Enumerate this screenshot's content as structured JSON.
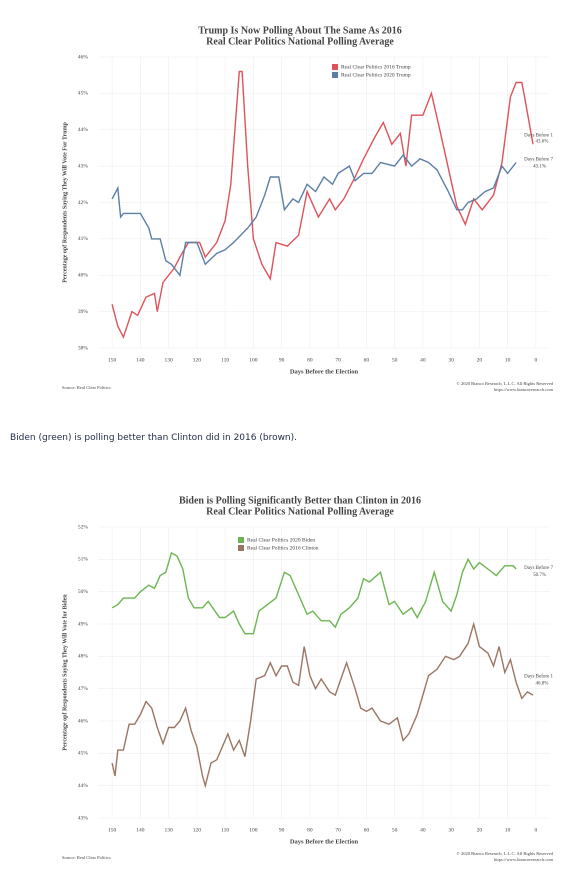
{
  "caption": "Biden (green) is polling better than Clinton did in 2016 (brown).",
  "chart_data": [
    {
      "type": "line",
      "title": "Trump Is Now Polling About The Same As 2016",
      "subtitle": "Real Clear Politics National Polling Average",
      "x_label": "Days Before the Election",
      "y_label": "Percentage opf Respondents Saying They Will Vote For Trump",
      "source": "Source: Real Clear Politics",
      "copyright": "© 2020 Bianco Research, L.L.C. All Rights Reserved",
      "url": "https://www.biancoresearch.com",
      "xlim": [
        155,
        -5
      ],
      "xticks": [
        150,
        140,
        130,
        120,
        110,
        100,
        90,
        80,
        70,
        60,
        50,
        40,
        30,
        20,
        10,
        0
      ],
      "ylim": [
        38,
        46
      ],
      "yticks": [
        {
          "value": 38,
          "label": "38%"
        },
        {
          "value": 39,
          "label": "39%"
        },
        {
          "value": 40,
          "label": "40%"
        },
        {
          "value": 41,
          "label": "41%"
        },
        {
          "value": 42,
          "label": "42%"
        },
        {
          "value": 43,
          "label": "43%"
        },
        {
          "value": 44,
          "label": "44%"
        },
        {
          "value": 45,
          "label": "45%"
        },
        {
          "value": 46,
          "label": "46%"
        }
      ],
      "grid": true,
      "legend": "top",
      "series": [
        {
          "name": "Real Clear Politics 2016 Trump",
          "color": "#e0525a",
          "x": [
            150,
            148,
            146,
            143,
            141,
            138,
            135,
            134,
            132,
            128,
            126,
            123,
            119,
            117,
            113,
            110,
            108,
            105,
            104,
            102,
            100,
            97,
            94,
            92,
            88,
            84,
            81,
            77,
            73,
            71,
            68,
            64,
            61,
            57,
            54,
            51,
            48,
            46,
            44,
            40,
            37,
            34,
            30,
            28,
            25,
            22,
            19,
            15,
            12,
            9,
            7,
            5,
            4,
            1
          ],
          "values": [
            39.2,
            38.6,
            38.3,
            39.0,
            38.9,
            39.4,
            39.5,
            39.0,
            39.8,
            40.2,
            40.5,
            40.9,
            40.9,
            40.5,
            40.9,
            41.5,
            42.5,
            45.6,
            45.6,
            43.0,
            41.0,
            40.3,
            39.9,
            40.9,
            40.8,
            41.1,
            42.3,
            41.6,
            42.1,
            41.8,
            42.1,
            42.7,
            43.2,
            43.8,
            44.2,
            43.6,
            43.9,
            43.0,
            44.4,
            44.4,
            45.0,
            44.0,
            42.6,
            41.9,
            41.4,
            42.1,
            41.8,
            42.2,
            43.1,
            44.9,
            45.3,
            45.3,
            44.9,
            43.6
          ],
          "end_label": {
            "note": "Days Before 1",
            "value": "43.6%"
          }
        },
        {
          "name": "Real Clear Politics 2020 Trump",
          "color": "#5b7fa8",
          "x": [
            150,
            148,
            147,
            146,
            140,
            137,
            136,
            133,
            131,
            129,
            126,
            124,
            120,
            117,
            113,
            110,
            107,
            102,
            99,
            96,
            94,
            91,
            89,
            86,
            84,
            81,
            78,
            75,
            72,
            70,
            66,
            64,
            61,
            58,
            55,
            50,
            47,
            44,
            41,
            38,
            35,
            31,
            28,
            26,
            24,
            21,
            18,
            15,
            12,
            10,
            7
          ],
          "values": [
            42.1,
            42.4,
            41.6,
            41.7,
            41.7,
            41.3,
            41.0,
            41.0,
            40.4,
            40.3,
            40.0,
            40.9,
            40.9,
            40.3,
            40.6,
            40.7,
            40.9,
            41.3,
            41.6,
            42.2,
            42.7,
            42.7,
            41.8,
            42.1,
            42.0,
            42.5,
            42.3,
            42.7,
            42.5,
            42.8,
            43.0,
            42.6,
            42.8,
            42.8,
            43.1,
            43.0,
            43.3,
            43.0,
            43.2,
            43.1,
            42.9,
            42.3,
            41.8,
            41.8,
            42.0,
            42.1,
            42.3,
            42.4,
            43.0,
            42.8,
            43.1
          ],
          "end_label": {
            "note": "Days Before 7",
            "value": "43.1%"
          }
        }
      ]
    },
    {
      "type": "line",
      "title": "Biden is Polling Significantly Better than Clinton in 2016",
      "subtitle": "Real Clear Politics National Polling Average",
      "x_label": "Days Before the Election",
      "y_label": "Percentage opf Respondents Saying They Will Vote for Biden",
      "source": "Source: Real Clear Politics",
      "copyright": "© 2020 Bianco Research, L.L.C. All Rights Reserved",
      "url": "https://www.biancoresearch.com",
      "xlim": [
        155,
        -5
      ],
      "xticks": [
        150,
        140,
        130,
        120,
        110,
        100,
        90,
        80,
        70,
        60,
        50,
        40,
        30,
        20,
        10,
        0
      ],
      "ylim": [
        43,
        52
      ],
      "yticks": [
        {
          "value": 43,
          "label": "43%"
        },
        {
          "value": 44,
          "label": "44%"
        },
        {
          "value": 45,
          "label": "45%"
        },
        {
          "value": 46,
          "label": "46%"
        },
        {
          "value": 47,
          "label": "47%"
        },
        {
          "value": 48,
          "label": "48%"
        },
        {
          "value": 49,
          "label": "49%"
        },
        {
          "value": 50,
          "label": "50%"
        },
        {
          "value": 51,
          "label": "51%"
        },
        {
          "value": 52,
          "label": "52%"
        }
      ],
      "grid": true,
      "legend": "top",
      "series": [
        {
          "name": "Real Clear Politics 2020 Biden",
          "color": "#6cb552",
          "x": [
            150,
            148,
            146,
            142,
            140,
            137,
            135,
            133,
            131,
            129,
            127,
            125,
            123,
            121,
            118,
            116,
            112,
            110,
            107,
            105,
            103,
            100,
            98,
            95,
            92,
            89,
            87,
            84,
            81,
            79,
            76,
            73,
            71,
            69,
            66,
            63,
            61,
            59,
            55,
            52,
            50,
            47,
            44,
            42,
            39,
            36,
            33,
            30,
            28,
            26,
            24,
            22,
            20,
            17,
            14,
            11,
            8,
            7
          ],
          "values": [
            49.5,
            49.6,
            49.8,
            49.8,
            50.0,
            50.2,
            50.1,
            50.5,
            50.6,
            51.2,
            51.1,
            50.7,
            49.8,
            49.5,
            49.5,
            49.7,
            49.2,
            49.2,
            49.4,
            49.0,
            48.7,
            48.7,
            49.4,
            49.6,
            49.8,
            50.6,
            50.5,
            49.9,
            49.3,
            49.4,
            49.1,
            49.1,
            48.9,
            49.3,
            49.5,
            49.8,
            50.4,
            50.3,
            50.6,
            49.6,
            49.7,
            49.3,
            49.5,
            49.2,
            49.7,
            50.6,
            49.7,
            49.4,
            49.9,
            50.6,
            51.0,
            50.7,
            50.9,
            50.7,
            50.5,
            50.8,
            50.8,
            50.7
          ],
          "end_label": {
            "note": "Days Before 7",
            "value": "50.7%"
          }
        },
        {
          "name": "Real Clear Politics 2016 Clinton",
          "color": "#9b7562",
          "x": [
            150,
            149,
            148,
            146,
            144,
            142,
            140,
            138,
            136,
            134,
            132,
            130,
            128,
            126,
            124,
            122,
            120,
            118,
            117,
            115,
            113,
            111,
            109,
            107,
            105,
            103,
            101,
            99,
            96,
            94,
            92,
            90,
            88,
            86,
            84,
            82,
            80,
            78,
            76,
            73,
            71,
            69,
            67,
            64,
            62,
            60,
            58,
            55,
            52,
            49,
            47,
            45,
            42,
            40,
            38,
            35,
            32,
            29,
            27,
            24,
            22,
            20,
            17,
            15,
            13,
            11,
            9,
            7,
            5,
            3,
            1
          ],
          "values": [
            44.7,
            44.3,
            45.1,
            45.1,
            45.9,
            45.9,
            46.2,
            46.6,
            46.4,
            45.8,
            45.3,
            45.8,
            45.8,
            46.0,
            46.4,
            45.7,
            45.2,
            44.3,
            44.0,
            44.7,
            44.8,
            45.2,
            45.6,
            45.1,
            45.4,
            44.9,
            46.0,
            47.3,
            47.4,
            47.8,
            47.4,
            47.7,
            47.7,
            47.2,
            47.1,
            48.3,
            47.4,
            47.0,
            47.3,
            46.9,
            46.8,
            47.3,
            47.8,
            47.0,
            46.4,
            46.3,
            46.4,
            46.0,
            45.9,
            46.1,
            45.4,
            45.6,
            46.2,
            46.8,
            47.4,
            47.6,
            48.0,
            47.9,
            48.0,
            48.4,
            49.0,
            48.3,
            48.1,
            47.7,
            48.3,
            47.5,
            47.9,
            47.2,
            46.7,
            46.9,
            46.8
          ],
          "end_label": {
            "note": "Days Before 1",
            "value": "46.8%"
          }
        }
      ]
    }
  ]
}
